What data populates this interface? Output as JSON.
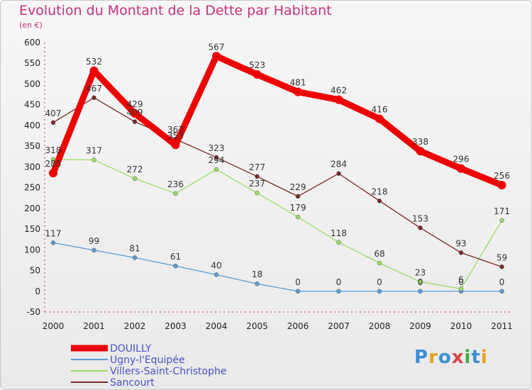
{
  "chart_data": {
    "type": "line",
    "title": "Evolution du Montant de la Dette par Habitant",
    "subtitle": "(en €)",
    "x": [
      "2000",
      "2001",
      "2002",
      "2003",
      "2004",
      "2005",
      "2006",
      "2007",
      "2008",
      "2009",
      "2010",
      "2011"
    ],
    "ylim": [
      -50,
      600
    ],
    "yticks": [
      -50,
      0,
      50,
      100,
      150,
      200,
      250,
      300,
      350,
      400,
      450,
      500,
      550,
      600
    ],
    "grid": false,
    "legend_position": "bottom-left",
    "series": [
      {
        "name": "DOUILLY",
        "color": "#ee0000",
        "values": [
          285,
          532,
          429,
          353,
          567,
          523,
          481,
          462,
          416,
          338,
          296,
          256
        ]
      },
      {
        "name": "Ugny-l'Equipée",
        "color": "#5b9bd5",
        "values": [
          117,
          99,
          81,
          61,
          40,
          18,
          0,
          0,
          0,
          0,
          0,
          0
        ]
      },
      {
        "name": "Villers-Saint-Christophe",
        "color": "#99dd66",
        "values": [
          318,
          317,
          272,
          236,
          294,
          237,
          179,
          118,
          68,
          23,
          6,
          171
        ]
      },
      {
        "name": "Sancourt",
        "color": "#7a2a2a",
        "values": [
          407,
          467,
          409,
          367,
          323,
          277,
          229,
          284,
          218,
          153,
          93,
          59
        ]
      }
    ]
  },
  "logo": {
    "text": "Proxiti"
  }
}
